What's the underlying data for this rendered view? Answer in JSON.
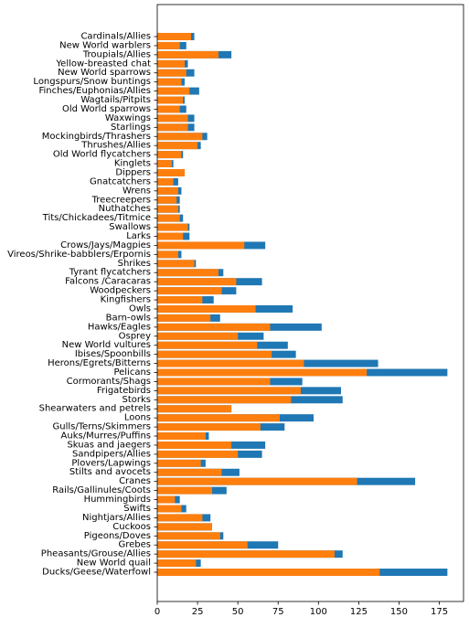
{
  "chart_data": {
    "type": "bar",
    "orientation": "horizontal",
    "stacked": "overlay",
    "title": "",
    "xlabel": "",
    "ylabel": "",
    "xlim": [
      0,
      190
    ],
    "xticks": [
      0,
      25,
      50,
      75,
      100,
      125,
      150,
      175
    ],
    "grid": false,
    "legend": "none",
    "colors": {
      "series_back": "#1f77b4",
      "series_front": "#ff7f0e"
    },
    "categories": [
      "Ducks/Geese/Waterfowl",
      "New World quail",
      "Pheasants/Grouse/Allies",
      "Grebes",
      "Pigeons/Doves",
      "Cuckoos",
      "Nightjars/Allies",
      "Swifts",
      "Hummingbirds",
      "Rails/Gallinules/Coots",
      "Cranes",
      "Stilts and avocets",
      "Plovers/Lapwings",
      "Sandpipers/Allies",
      "Skuas and jaegers",
      "Auks/Murres/Puffins",
      "Gulls/Terns/Skimmers",
      "Loons",
      "Shearwaters and petrels",
      "Storks",
      "Frigatebirds",
      "Cormorants/Shags",
      "Pelicans",
      "Herons/Egrets/Bitterns",
      "Ibises/Spoonbills",
      "New World vultures",
      "Osprey",
      "Hawks/Eagles",
      "Barn-owls",
      "Owls",
      "Kingfishers",
      "Woodpeckers",
      "Falcons /Caracaras",
      "Tyrant flycatchers",
      "Shrikes",
      "Vireos/Shrike-babblers/Erpornis",
      "Crows/Jays/Magpies",
      "Larks",
      "Swallows",
      "Tits/Chickadees/Titmice",
      "Nuthatches",
      "Treecreepers",
      "Wrens",
      "Gnatcatchers",
      "Dippers",
      "Kinglets",
      "Old World flycatchers",
      "Thrushes/Allies",
      "Mockingbirds/Thrashers",
      "Starlings",
      "Waxwings",
      "Old World sparrows",
      "Wagtails/Pitpits",
      "Finches/Euphonias/Allies",
      "Longspurs/Snow buntings",
      "New World sparrows",
      "Yellow-breasted chat",
      "Troupials/Allies",
      "New World warblers",
      "Cardinals/Allies"
    ],
    "series": [
      {
        "values": [
          180,
          27,
          115,
          75,
          41,
          34,
          33,
          18,
          14,
          43,
          160,
          51,
          30,
          65,
          67,
          32,
          79,
          97,
          46,
          115,
          114,
          90,
          180,
          137,
          86,
          81,
          66,
          102,
          39,
          84,
          35,
          49,
          65,
          41,
          24,
          15,
          67,
          20,
          20,
          16,
          14,
          14,
          15,
          13,
          17,
          10,
          16,
          27,
          31,
          23,
          23,
          18,
          17,
          26,
          17,
          23,
          19,
          46,
          18,
          23
        ]
      },
      {
        "values": [
          138,
          24,
          110,
          56,
          39,
          34,
          28,
          15,
          11,
          34,
          124,
          40,
          27,
          50,
          46,
          30,
          64,
          76,
          46,
          83,
          89,
          70,
          130,
          91,
          71,
          62,
          50,
          70,
          33,
          61,
          28,
          40,
          49,
          38,
          23,
          13,
          54,
          16,
          19,
          14,
          13,
          12,
          13,
          10,
          17,
          9,
          15,
          25,
          28,
          19,
          19,
          14,
          16,
          20,
          15,
          18,
          17,
          38,
          14,
          21
        ]
      }
    ]
  }
}
